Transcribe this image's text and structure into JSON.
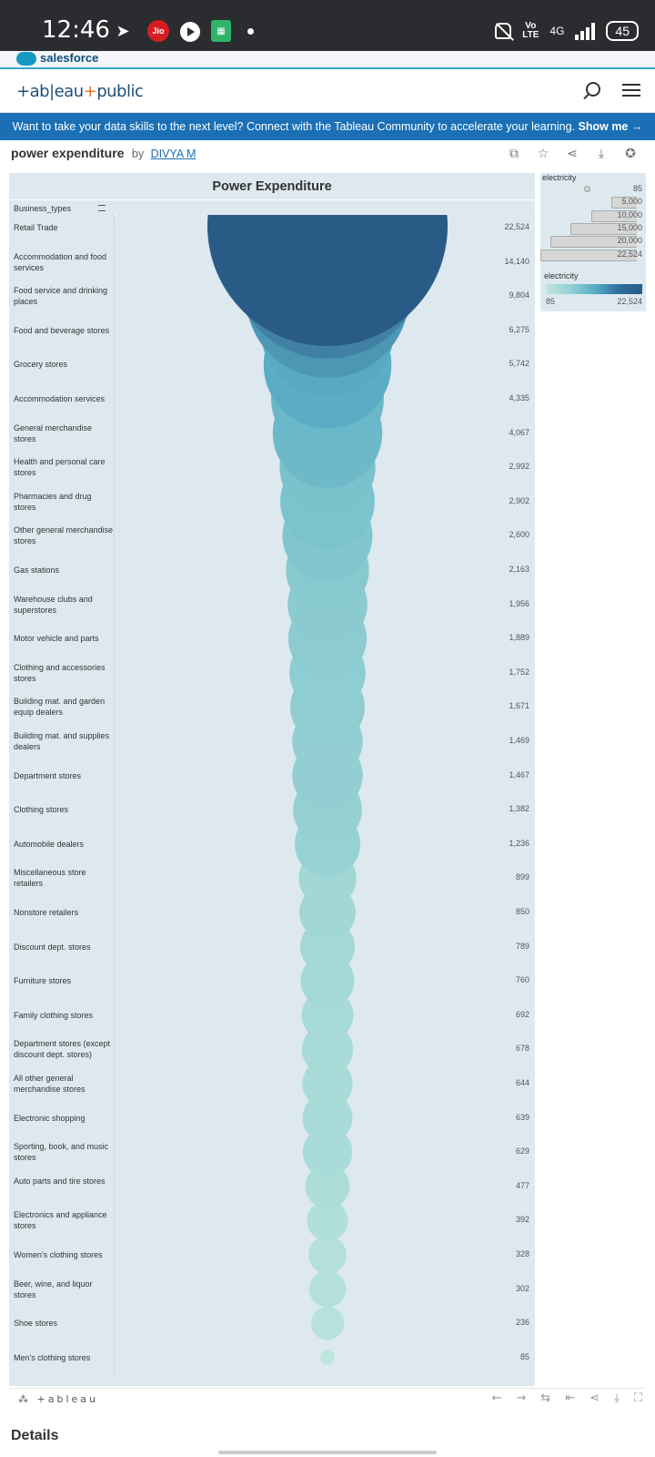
{
  "status_bar": {
    "time": "12:46",
    "carrier_badge": "Jio",
    "net_label": "4G",
    "volte_top": "Vo",
    "volte_bottom": "LTE",
    "battery": "45"
  },
  "salesforce": {
    "label": "salesforce"
  },
  "header": {
    "logo_a": "+ab|eau",
    "logo_b": "+",
    "logo_c": "public"
  },
  "banner": {
    "text": "Want to take your data skills to the next level? Connect with the Tableau Community to accelerate your learning.",
    "cta": "Show me →"
  },
  "viz_meta": {
    "title": "power expenditure",
    "by": "by",
    "author": "DIVYA M"
  },
  "chart_data": {
    "type": "scatter",
    "title": "Power Expenditure",
    "column_header": "Business_types",
    "measure": "electricity",
    "categories": [
      "Retail Trade",
      "Accommodation and food services",
      "Food service and drinking places",
      "Food and beverage stores",
      "Grocery stores",
      "Accommodation services",
      "General merchandise stores",
      "Health and personal care stores",
      "Pharmacies and drug stores",
      "Other general merchandise stores",
      "Gas stations",
      "Warehouse clubs and superstores",
      "Motor vehicle and parts",
      "Clothing and accessories stores",
      "Building mat. and garden equip dealers",
      "Building mat. and supplies dealers",
      "Department stores",
      "Clothing stores",
      "Automobile dealers",
      "Miscellaneous store retailers",
      "Nonstore retailers",
      "Discount dept. stores",
      "Furniture stores",
      "Family clothing stores",
      "Department stores (except discount dept. stores)",
      "All other general merchandise stores",
      "Electronic shopping",
      "Sporting, book, and music stores",
      "Auto parts and tire stores",
      "Electronics and appliance stores",
      "Women's clothing stores",
      "Beer, wine, and liquor stores",
      "Shoe stores",
      "Men's clothing stores"
    ],
    "values": [
      22524,
      14140,
      9804,
      6275,
      5742,
      4335,
      4067,
      2992,
      2902,
      2600,
      2163,
      1956,
      1889,
      1752,
      1671,
      1469,
      1467,
      1382,
      1236,
      899,
      850,
      789,
      760,
      692,
      678,
      644,
      639,
      629,
      477,
      392,
      328,
      302,
      236,
      85
    ],
    "value_labels": [
      "22,524",
      "14,140",
      "9,804",
      "6,275",
      "5,742",
      "4,335",
      "4,067",
      "2,992",
      "2,902",
      "2,600",
      "2,163",
      "1,956",
      "1,889",
      "1,752",
      "1,671",
      "1,469",
      "1,467",
      "1,382",
      "1,236",
      "899",
      "850",
      "789",
      "760",
      "692",
      "678",
      "644",
      "639",
      "629",
      "477",
      "392",
      "328",
      "302",
      "236",
      "85"
    ],
    "size_legend": {
      "title": "electricity",
      "labels": [
        "85",
        "5,000",
        "10,000",
        "15,000",
        "20,000",
        "22,524"
      ]
    },
    "color_legend": {
      "title": "electricity",
      "min_label": "85",
      "max_label": "22,524",
      "min": 85,
      "max": 22524
    },
    "colors": {
      "low": "#bfe6de",
      "mid": "#94d0d2",
      "high": "#5aaec6",
      "max": "#2a5b86"
    }
  },
  "footer": {
    "logo": "+ableau"
  },
  "details": {
    "label": "Details"
  }
}
